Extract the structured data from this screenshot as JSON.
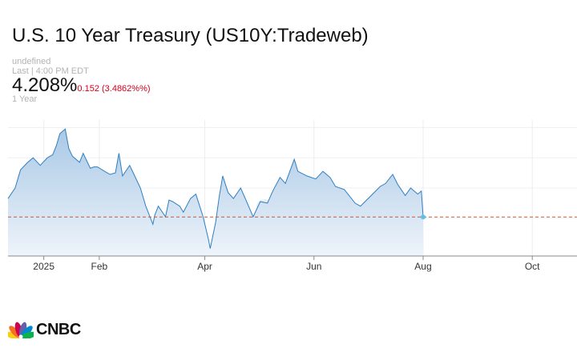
{
  "header": {
    "title": "U.S. 10 Year Treasury (US10Y:Tradeweb)",
    "undefined_label": "undefined",
    "last_label": "Last | 4:00 PM EDT",
    "price": "4.208%",
    "change": "0.152 (3.4862%%)",
    "range": "1 Year"
  },
  "brand": {
    "name": "CNBC",
    "watermark": "CNBC"
  },
  "colors": {
    "line": "#2f7fc0",
    "area_top": "#a9c8e6",
    "area_bottom": "#eef4fa",
    "change_negative": "#d0021b",
    "reference_line": "#c85a3c",
    "marker": "#5bc0eb"
  },
  "chart_data": {
    "type": "area",
    "x_ticks": [
      "2025",
      "Feb",
      "Apr",
      "Jun",
      "Aug",
      "Oct"
    ],
    "x_tick_dates": [
      "2025-01-01",
      "2025-02-01",
      "2025-04-01",
      "2025-06-01",
      "2025-08-01",
      "2025-10-01"
    ],
    "x_range": [
      "2024-12-12",
      "2025-10-26"
    ],
    "y_range": [
      3.95,
      4.85
    ],
    "reference_value": 4.208,
    "grid": true,
    "legend": "none",
    "series": [
      {
        "points": [
          [
            "2024-12-12",
            4.33
          ],
          [
            "2024-12-16",
            4.4
          ],
          [
            "2024-12-19",
            4.52
          ],
          [
            "2024-12-23",
            4.57
          ],
          [
            "2024-12-26",
            4.6
          ],
          [
            "2024-12-30",
            4.55
          ],
          [
            "2025-01-03",
            4.6
          ],
          [
            "2025-01-06",
            4.62
          ],
          [
            "2025-01-08",
            4.68
          ],
          [
            "2025-01-10",
            4.76
          ],
          [
            "2025-01-13",
            4.79
          ],
          [
            "2025-01-15",
            4.66
          ],
          [
            "2025-01-17",
            4.61
          ],
          [
            "2025-01-21",
            4.57
          ],
          [
            "2025-01-23",
            4.63
          ],
          [
            "2025-01-27",
            4.53
          ],
          [
            "2025-01-29",
            4.54
          ],
          [
            "2025-01-31",
            4.54
          ],
          [
            "2025-02-04",
            4.51
          ],
          [
            "2025-02-07",
            4.49
          ],
          [
            "2025-02-10",
            4.5
          ],
          [
            "2025-02-12",
            4.63
          ],
          [
            "2025-02-14",
            4.48
          ],
          [
            "2025-02-18",
            4.55
          ],
          [
            "2025-02-20",
            4.5
          ],
          [
            "2025-02-24",
            4.4
          ],
          [
            "2025-02-27",
            4.28
          ],
          [
            "2025-03-03",
            4.16
          ],
          [
            "2025-03-04",
            4.22
          ],
          [
            "2025-03-06",
            4.28
          ],
          [
            "2025-03-10",
            4.21
          ],
          [
            "2025-03-12",
            4.32
          ],
          [
            "2025-03-14",
            4.31
          ],
          [
            "2025-03-18",
            4.28
          ],
          [
            "2025-03-20",
            4.24
          ],
          [
            "2025-03-24",
            4.33
          ],
          [
            "2025-03-27",
            4.36
          ],
          [
            "2025-03-31",
            4.21
          ],
          [
            "2025-04-03",
            4.06
          ],
          [
            "2025-04-04",
            4.0
          ],
          [
            "2025-04-07",
            4.17
          ],
          [
            "2025-04-09",
            4.34
          ],
          [
            "2025-04-11",
            4.48
          ],
          [
            "2025-04-14",
            4.37
          ],
          [
            "2025-04-17",
            4.33
          ],
          [
            "2025-04-21",
            4.4
          ],
          [
            "2025-04-24",
            4.32
          ],
          [
            "2025-04-28",
            4.21
          ],
          [
            "2025-05-02",
            4.31
          ],
          [
            "2025-05-06",
            4.3
          ],
          [
            "2025-05-09",
            4.38
          ],
          [
            "2025-05-13",
            4.47
          ],
          [
            "2025-05-16",
            4.43
          ],
          [
            "2025-05-21",
            4.59
          ],
          [
            "2025-05-23",
            4.51
          ],
          [
            "2025-05-28",
            4.48
          ],
          [
            "2025-06-02",
            4.46
          ],
          [
            "2025-06-06",
            4.51
          ],
          [
            "2025-06-10",
            4.47
          ],
          [
            "2025-06-13",
            4.41
          ],
          [
            "2025-06-18",
            4.39
          ],
          [
            "2025-06-24",
            4.3
          ],
          [
            "2025-06-27",
            4.28
          ],
          [
            "2025-07-03",
            4.35
          ],
          [
            "2025-07-08",
            4.41
          ],
          [
            "2025-07-11",
            4.43
          ],
          [
            "2025-07-15",
            4.49
          ],
          [
            "2025-07-18",
            4.42
          ],
          [
            "2025-07-22",
            4.35
          ],
          [
            "2025-07-25",
            4.4
          ],
          [
            "2025-07-29",
            4.36
          ],
          [
            "2025-07-31",
            4.38
          ],
          [
            "2025-08-01",
            4.208
          ]
        ]
      }
    ]
  }
}
